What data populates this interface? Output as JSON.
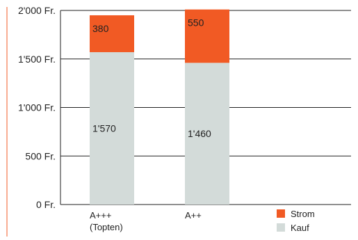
{
  "chart_data": {
    "type": "bar",
    "stacked": true,
    "categories": [
      {
        "lines": [
          "A+++",
          "(Topten)"
        ]
      },
      {
        "lines": [
          "A++"
        ]
      }
    ],
    "series": [
      {
        "name": "Kauf",
        "values": [
          1570,
          1460
        ],
        "labels": [
          "1'570",
          "1'460"
        ],
        "color": "#d3dbd9"
      },
      {
        "name": "Strom",
        "values": [
          380,
          550
        ],
        "labels": [
          "380",
          "550"
        ],
        "color": "#f15a24"
      }
    ],
    "ylim": [
      0,
      2000
    ],
    "yticks": [
      {
        "value": 0,
        "label": "0 Fr."
      },
      {
        "value": 500,
        "label": "500 Fr."
      },
      {
        "value": 1000,
        "label": "1'000 Fr."
      },
      {
        "value": 1500,
        "label": "1'500 Fr."
      },
      {
        "value": 2000,
        "label": "2'000 Fr."
      }
    ],
    "grid": true,
    "legend": {
      "position": "bottom-right",
      "order": [
        "Strom",
        "Kauf"
      ]
    },
    "colors": {
      "axis": "#222222",
      "frame": "#f15a24"
    }
  }
}
